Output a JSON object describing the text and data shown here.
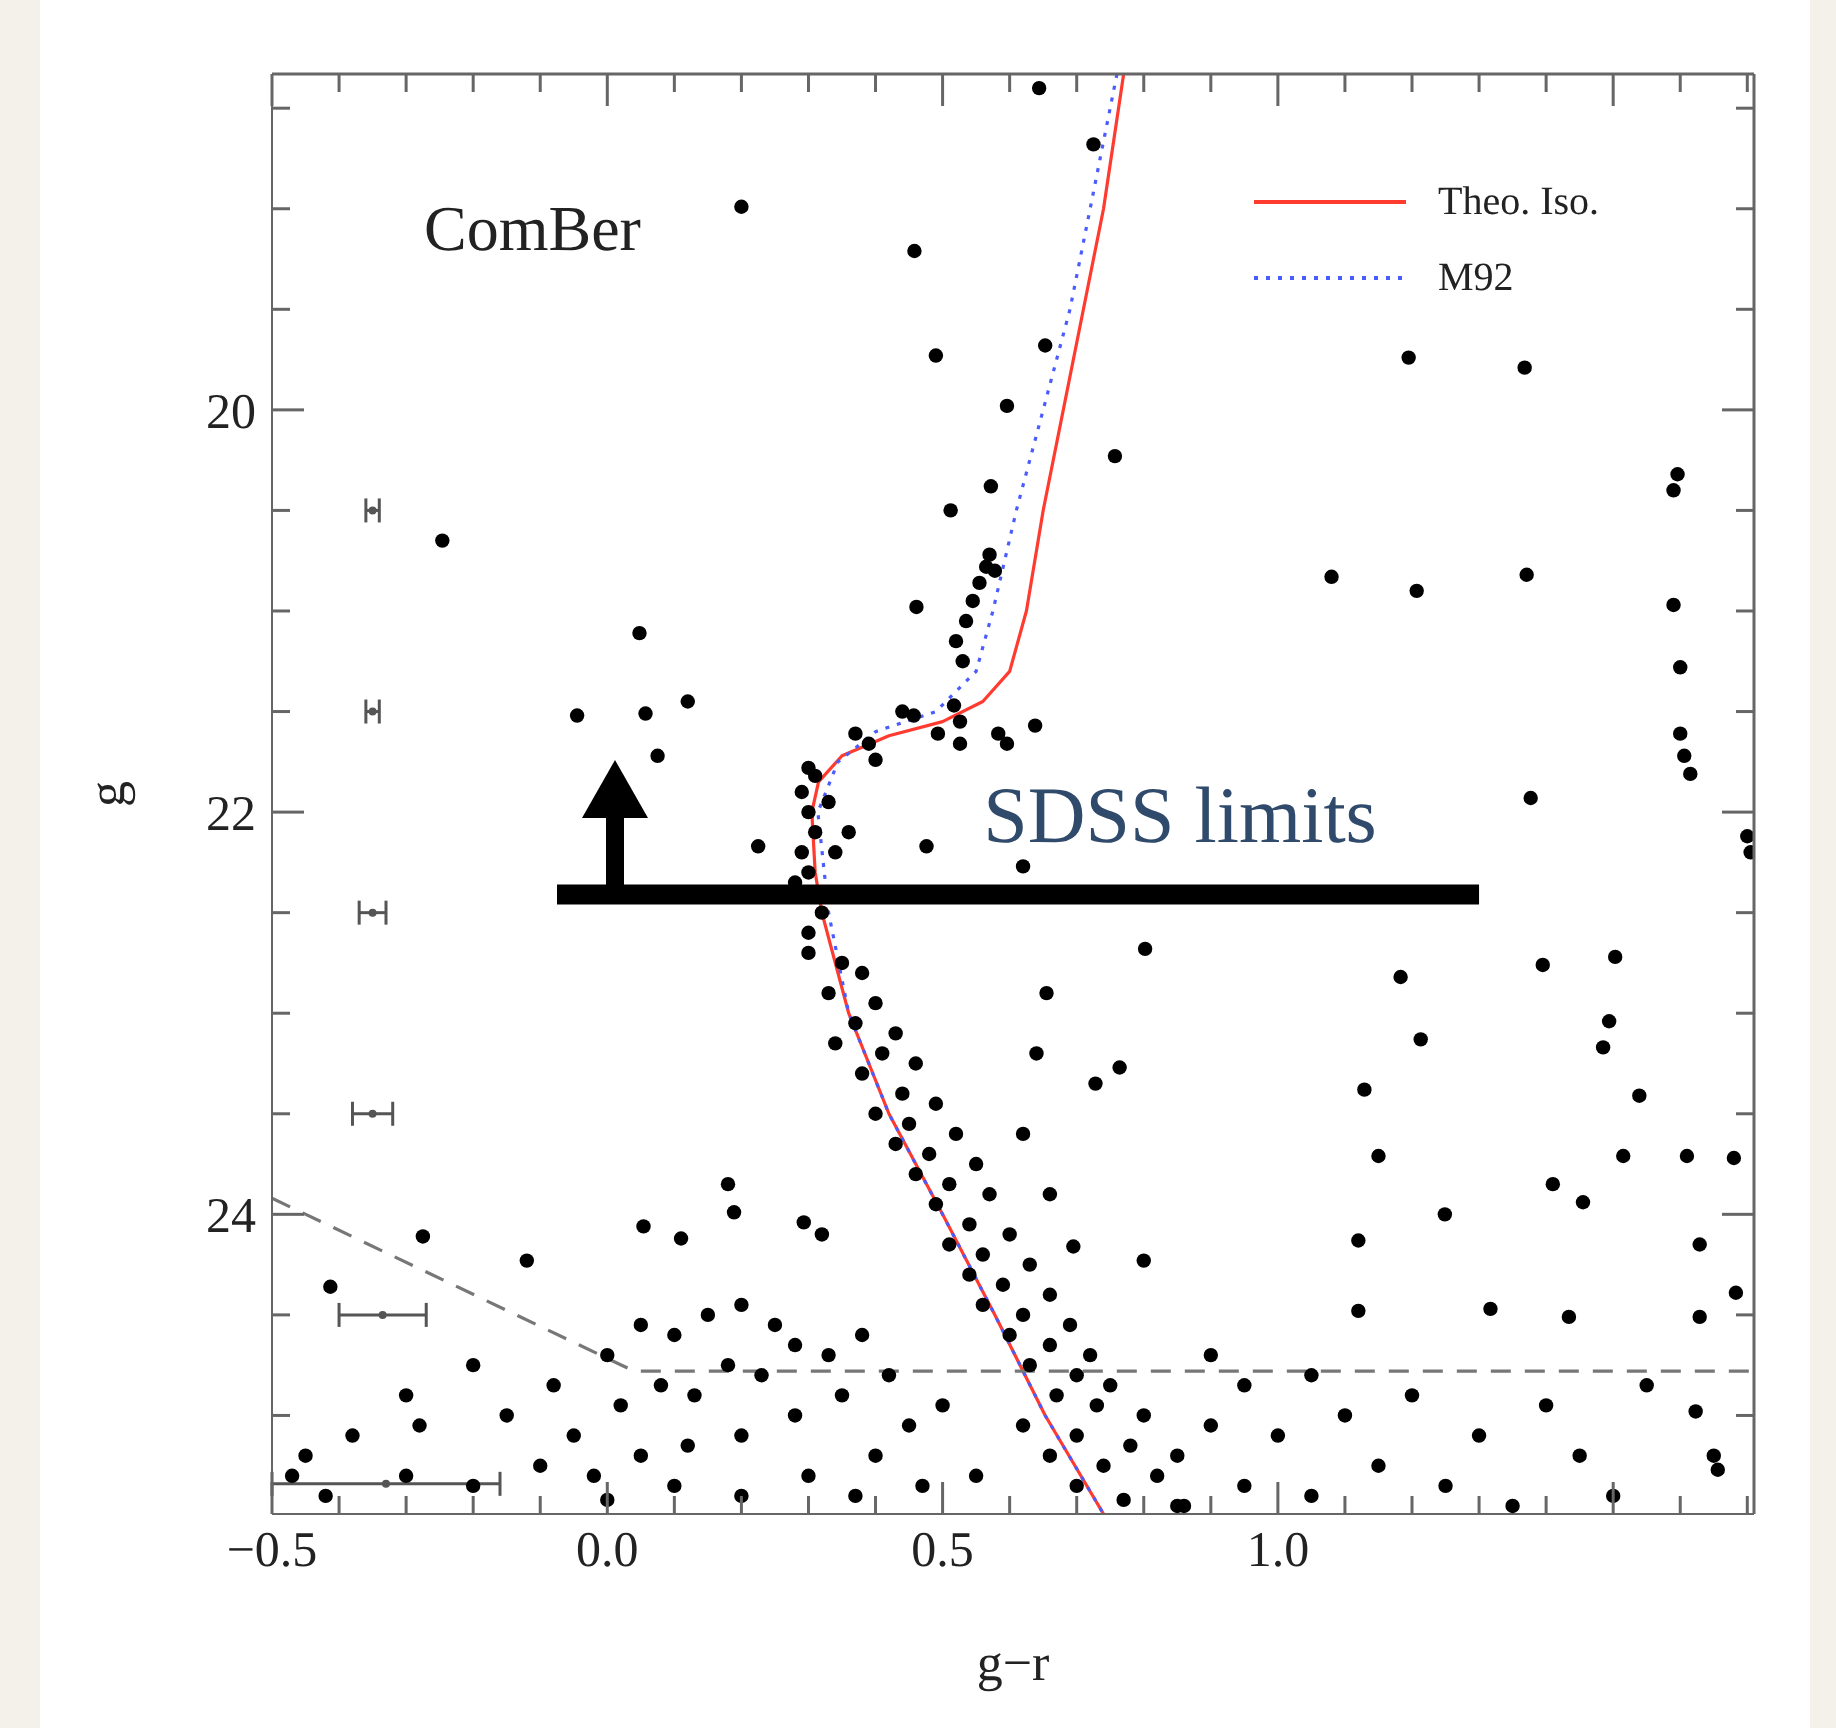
{
  "chart_data": {
    "type": "scatter",
    "xlabel": "g−r",
    "ylabel": "g",
    "xlim": [
      -0.5,
      1.71
    ],
    "ylim": [
      25.49,
      18.33
    ],
    "xticks": [
      {
        "value": -0.5,
        "label": "−0.5"
      },
      {
        "value": -0.4,
        "label": null
      },
      {
        "value": -0.3,
        "label": null
      },
      {
        "value": -0.2,
        "label": null
      },
      {
        "value": -0.1,
        "label": null
      },
      {
        "value": 0,
        "label": "0.0"
      },
      {
        "value": 0.1,
        "label": null
      },
      {
        "value": 0.2,
        "label": null
      },
      {
        "value": 0.3,
        "label": null
      },
      {
        "value": 0.4,
        "label": null
      },
      {
        "value": 0.5,
        "label": "0.5"
      },
      {
        "value": 0.6,
        "label": null
      },
      {
        "value": 0.7,
        "label": null
      },
      {
        "value": 0.8,
        "label": null
      },
      {
        "value": 0.9,
        "label": null
      },
      {
        "value": 1.0,
        "label": "1.0"
      },
      {
        "value": 1.1,
        "label": null
      },
      {
        "value": 1.2,
        "label": null
      },
      {
        "value": 1.3,
        "label": null
      },
      {
        "value": 1.4,
        "label": null
      },
      {
        "value": 1.5,
        "label": null
      },
      {
        "value": 1.6,
        "label": null
      },
      {
        "value": 1.7,
        "label": null
      }
    ],
    "yticks": [
      {
        "value": 18.5,
        "label": null
      },
      {
        "value": 19,
        "label": null
      },
      {
        "value": 19.5,
        "label": null
      },
      20,
      {
        "value": 20.5,
        "label": null
      },
      {
        "value": 21,
        "label": null
      },
      {
        "value": 21.5,
        "label": null
      },
      22,
      {
        "value": 22.5,
        "label": null
      },
      {
        "value": 23,
        "label": null
      },
      {
        "value": 23.5,
        "label": null
      },
      24,
      {
        "value": 24.5,
        "label": null
      },
      {
        "value": 25,
        "label": null
      }
    ],
    "legend": "top right",
    "annotations": [
      "ComBer",
      "SDSS limits"
    ],
    "series": [
      {
        "color": "#000000",
        "marker": "circle",
        "x": [
          0.644,
          0.725,
          0.2,
          0.458,
          0.49,
          0.653,
          1.195,
          1.368,
          0.596,
          0.757,
          0.572,
          0.512,
          -0.246,
          0.578,
          0.461,
          0.048,
          1.08,
          1.207,
          1.371,
          1.596,
          1.59,
          1.59,
          1.6,
          1.6,
          1.606,
          1.615,
          0.638,
          0.596,
          -0.045,
          0.057,
          0.12,
          0.075,
          0.57,
          0.565,
          0.555,
          0.545,
          0.535,
          0.52,
          0.53,
          0.457,
          0.493,
          0.526,
          0.517,
          0.526,
          0.583,
          0.37,
          0.4,
          0.39,
          0.44,
          0.3,
          0.31,
          0.29,
          0.3,
          0.31,
          0.29,
          0.3,
          0.33,
          0.28,
          0.32,
          0.3,
          0.34,
          0.225,
          0.476,
          0.62,
          0.36,
          1.7,
          1.705,
          0.802,
          1.183,
          1.213,
          1.129,
          1.377,
          1.395,
          1.503,
          1.494,
          1.485,
          1.539,
          1.15,
          1.41,
          1.249,
          1.455,
          1.515,
          1.61,
          1.68,
          0.728,
          0.764,
          0.695,
          0.8,
          1.12,
          1.12,
          1.317,
          1.434,
          1.629,
          1.629,
          1.683,
          1.623,
          1.656,
          0.655,
          0.64,
          0.62,
          0.66,
          0.3,
          0.35,
          0.38,
          0.33,
          0.4,
          0.37,
          0.43,
          0.34,
          0.41,
          0.46,
          0.38,
          0.44,
          0.49,
          0.4,
          0.45,
          0.52,
          0.43,
          0.48,
          0.55,
          0.46,
          0.51,
          0.57,
          0.49,
          0.54,
          0.6,
          0.51,
          0.56,
          0.63,
          0.54,
          0.59,
          0.66,
          0.56,
          0.62,
          0.69,
          0.6,
          0.66,
          0.72,
          0.63,
          0.7,
          0.75,
          0.67,
          0.73,
          0.8,
          0.62,
          0.7,
          0.78,
          0.66,
          0.74,
          0.82,
          0.7,
          0.77,
          0.86,
          -0.275,
          -0.413,
          -0.12,
          0.054,
          0.18,
          0.189,
          0.293,
          0.32,
          0.11,
          -0.3,
          -0.2,
          -0.45,
          -0.38,
          -0.28,
          -0.15,
          -0.08,
          0.0,
          0.05,
          0.1,
          0.15,
          0.2,
          0.25,
          -0.05,
          0.02,
          0.08,
          0.13,
          0.18,
          0.23,
          0.28,
          0.33,
          0.38,
          0.42,
          0.35,
          0.28,
          0.2,
          0.12,
          0.05,
          -0.02,
          -0.1,
          -0.2,
          -0.3,
          -0.42,
          -0.47,
          0.0,
          0.1,
          0.2,
          0.3,
          0.4,
          0.45,
          0.5,
          0.37,
          0.47,
          0.55,
          0.9,
          0.95,
          0.9,
          1.0,
          0.85,
          0.95,
          1.05,
          1.1,
          1.15,
          1.05,
          1.2,
          1.3,
          1.25,
          1.4,
          1.45,
          1.5,
          1.55,
          1.35,
          0.85,
          1.65
        ],
        "values": [
          18.4,
          18.68,
          18.99,
          19.21,
          19.73,
          19.68,
          19.74,
          19.79,
          19.98,
          20.23,
          20.38,
          20.5,
          20.65,
          20.8,
          20.98,
          21.11,
          20.83,
          20.9,
          20.82,
          20.32,
          20.4,
          20.97,
          21.28,
          21.61,
          21.72,
          21.81,
          21.57,
          21.66,
          21.52,
          21.51,
          21.45,
          21.72,
          20.72,
          20.78,
          20.86,
          20.95,
          21.05,
          21.15,
          21.25,
          21.52,
          21.61,
          21.55,
          21.47,
          21.66,
          21.61,
          21.61,
          21.74,
          21.66,
          21.5,
          21.78,
          21.82,
          21.9,
          22.0,
          22.1,
          22.2,
          22.3,
          21.95,
          22.35,
          22.5,
          22.6,
          22.2,
          22.17,
          22.17,
          22.27,
          22.1,
          22.12,
          22.2,
          22.68,
          22.82,
          23.13,
          23.38,
          21.93,
          22.76,
          22.72,
          23.04,
          23.17,
          23.41,
          23.71,
          23.85,
          24.0,
          23.94,
          23.71,
          23.71,
          23.72,
          23.35,
          23.27,
          24.16,
          24.23,
          24.13,
          24.48,
          24.47,
          24.51,
          24.15,
          24.51,
          24.39,
          24.98,
          25.27,
          22.9,
          23.2,
          23.6,
          23.9,
          22.7,
          22.75,
          22.8,
          22.9,
          22.95,
          23.05,
          23.1,
          23.15,
          23.2,
          23.25,
          23.3,
          23.4,
          23.45,
          23.5,
          23.55,
          23.6,
          23.65,
          23.7,
          23.75,
          23.8,
          23.85,
          23.9,
          23.95,
          24.05,
          24.1,
          24.15,
          24.2,
          24.25,
          24.3,
          24.35,
          24.4,
          24.45,
          24.5,
          24.55,
          24.6,
          24.65,
          24.7,
          24.75,
          24.8,
          24.85,
          24.9,
          24.95,
          25.0,
          25.05,
          25.1,
          25.15,
          25.2,
          25.25,
          25.3,
          25.35,
          25.42,
          25.45,
          24.11,
          24.36,
          24.23,
          24.06,
          23.85,
          23.99,
          24.04,
          24.1,
          24.12,
          24.9,
          24.75,
          25.2,
          25.1,
          25.05,
          25.0,
          24.85,
          24.7,
          24.55,
          24.6,
          24.5,
          24.45,
          24.55,
          25.1,
          24.95,
          24.85,
          24.9,
          24.75,
          24.8,
          24.65,
          24.7,
          24.6,
          24.8,
          24.9,
          25.0,
          25.1,
          25.15,
          25.2,
          25.3,
          25.25,
          25.35,
          25.3,
          25.4,
          25.3,
          25.42,
          25.35,
          25.4,
          25.3,
          25.2,
          25.05,
          24.95,
          25.4,
          25.35,
          25.3,
          24.7,
          24.85,
          25.05,
          25.1,
          25.2,
          25.35,
          24.8,
          25.0,
          25.25,
          25.4,
          24.9,
          25.1,
          25.35,
          24.95,
          25.2,
          25.4,
          24.85,
          25.45,
          25.45,
          25.2
        ]
      },
      {
        "type": "scatter",
        "color": "#555555",
        "marker": "circle",
        "x": [
          -0.35,
          -0.35,
          -0.35,
          -0.35,
          -0.335,
          -0.33
        ],
        "values": [
          20.5,
          21.5,
          22.5,
          23.5,
          24.5,
          25.34
        ],
        "xerrors": [
          0.01,
          0.01,
          0.02,
          0.03,
          0.065,
          0.17
        ]
      },
      {
        "type": "line",
        "name": "Theo. Iso.",
        "color": "#ff3b30",
        "line_style": "solid",
        "x": [
          0.77,
          0.74,
          0.71,
          0.68,
          0.65,
          0.625,
          0.6,
          0.56,
          0.5,
          0.42,
          0.35,
          0.315,
          0.305,
          0.31,
          0.32,
          0.36,
          0.42,
          0.5,
          0.578,
          0.653,
          0.74
        ],
        "values": [
          18.33,
          19.0,
          19.5,
          20.0,
          20.5,
          21.0,
          21.3,
          21.45,
          21.55,
          21.62,
          21.72,
          21.85,
          22.0,
          22.3,
          22.5,
          23.0,
          23.5,
          24.0,
          24.5,
          25.0,
          25.49
        ]
      },
      {
        "type": "line",
        "name": "M92",
        "color": "#4a5cff",
        "line_style": "dotted",
        "x": [
          0.76,
          0.72,
          0.69,
          0.65,
          0.61,
          0.575,
          0.55,
          0.49,
          0.4,
          0.344,
          0.314,
          0.33,
          0.36,
          0.42,
          0.5,
          0.578,
          0.653,
          0.74
        ],
        "values": [
          18.33,
          19.0,
          19.5,
          20.0,
          20.5,
          21.0,
          21.3,
          21.5,
          21.6,
          21.75,
          22.0,
          22.5,
          23.0,
          23.5,
          24.0,
          24.5,
          25.0,
          25.49
        ]
      },
      {
        "type": "line",
        "color": "#777777",
        "line_style": "dashed",
        "x": [
          -0.5,
          0.04,
          1.71
        ],
        "values": [
          23.92,
          24.78,
          24.78
        ]
      },
      {
        "type": "line",
        "color": "#000000",
        "line_style": "solid",
        "x": [
          -0.075,
          1.3
        ],
        "values": [
          22.41,
          22.41
        ]
      }
    ]
  }
}
